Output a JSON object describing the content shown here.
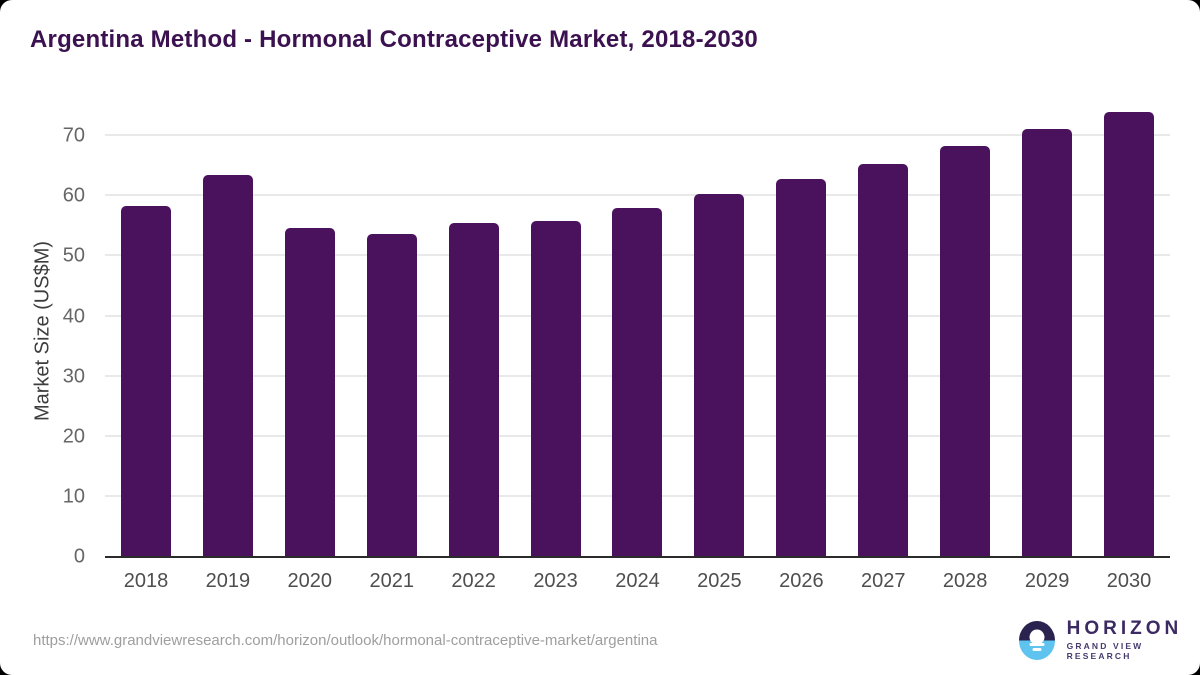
{
  "chart_data": {
    "type": "bar",
    "title": "Argentina Method - Hormonal Contraceptive Market, 2018-2030",
    "categories": [
      "2018",
      "2019",
      "2020",
      "2021",
      "2022",
      "2023",
      "2024",
      "2025",
      "2026",
      "2027",
      "2028",
      "2029",
      "2030"
    ],
    "values": [
      58.4,
      63.6,
      54.7,
      53.7,
      55.5,
      55.9,
      58.0,
      60.4,
      62.9,
      65.4,
      68.3,
      71.2,
      74.1
    ],
    "xlabel": "",
    "ylabel": "Market Size (US$M)",
    "yticks": [
      0,
      10,
      20,
      30,
      40,
      50,
      60,
      70
    ],
    "ylim": [
      0,
      75.2
    ],
    "grid": "horizontal",
    "legend": "none",
    "bar_color": "#4A115C"
  },
  "footer": {
    "url": "https://www.grandviewresearch.com/horizon/outlook/hormonal-contraceptive-market/argentina",
    "logo": {
      "name": "HORIZON",
      "tagline": "GRAND VIEW RESEARCH",
      "mark_icon": "sunset-horizon-icon",
      "mark_top_color": "#2A2350",
      "mark_bottom_color": "#5FC3EF",
      "text_color": "#3C2A62"
    }
  },
  "colors": {
    "card_background": "#FFFFFF",
    "outer_background": "#000000",
    "title": "#3B1150",
    "tick_label": "#666666",
    "x_label": "#4E4E4E",
    "gridline": "#E9E9E9",
    "baseline": "#2B2B2B",
    "url_text": "#9E9E9E"
  }
}
